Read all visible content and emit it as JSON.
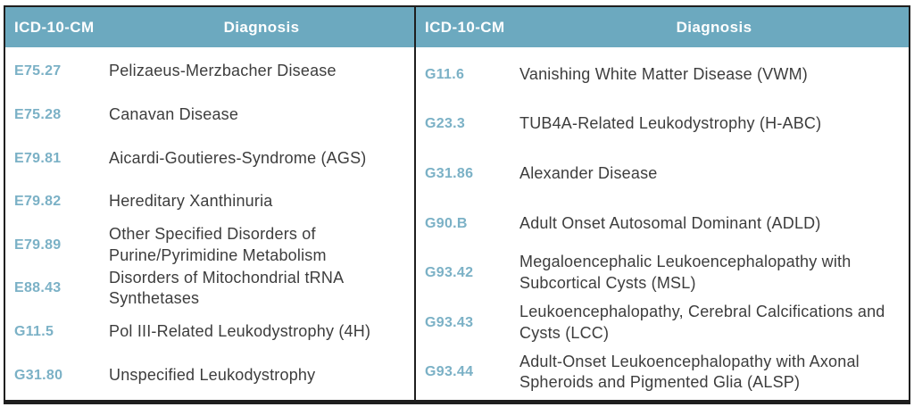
{
  "table": {
    "header": {
      "code_label": "ICD-10-CM",
      "diagnosis_label": "Diagnosis"
    },
    "left_rows": [
      {
        "code": "E75.27",
        "diagnosis": "Pelizaeus-Merzbacher Disease"
      },
      {
        "code": "E75.28",
        "diagnosis": "Canavan Disease"
      },
      {
        "code": "E79.81",
        "diagnosis": "Aicardi-Goutieres-Syndrome (AGS)"
      },
      {
        "code": "E79.82",
        "diagnosis": "Hereditary Xanthinuria"
      },
      {
        "code": "E79.89",
        "diagnosis": "Other Specified Disorders of Purine/Pyrimidine Metabolism"
      },
      {
        "code": "E88.43",
        "diagnosis": "Disorders of Mitochondrial tRNA Synthetases"
      },
      {
        "code": "G11.5",
        "diagnosis": "Pol III-Related Leukodystrophy (4H)"
      },
      {
        "code": "G31.80",
        "diagnosis": "Unspecified Leukodystrophy"
      }
    ],
    "right_rows": [
      {
        "code": "G11.6",
        "diagnosis": "Vanishing White Matter Disease (VWM)"
      },
      {
        "code": "G23.3",
        "diagnosis": "TUB4A-Related Leukodystrophy (H-ABC)"
      },
      {
        "code": "G31.86",
        "diagnosis": "Alexander Disease"
      },
      {
        "code": "G90.B",
        "diagnosis": "Adult Onset Autosomal Dominant (ADLD)"
      },
      {
        "code": "G93.42",
        "diagnosis": "Megaloencephalic Leukoencephalopathy with Subcortical Cysts (MSL)"
      },
      {
        "code": "G93.43",
        "diagnosis": "Leukoencephalopathy, Cerebral Calcifications and Cysts (LCC)"
      },
      {
        "code": "G93.44",
        "diagnosis": "Adult-Onset Leukoencephalopathy with Axonal Spheroids and Pigmented Glia (ALSP)"
      }
    ]
  },
  "colors": {
    "header_bg": "#6ca9bf",
    "code_color": "#7bb1c6",
    "body_text": "#3d3d3d",
    "border_color": "#1e1e1e"
  }
}
